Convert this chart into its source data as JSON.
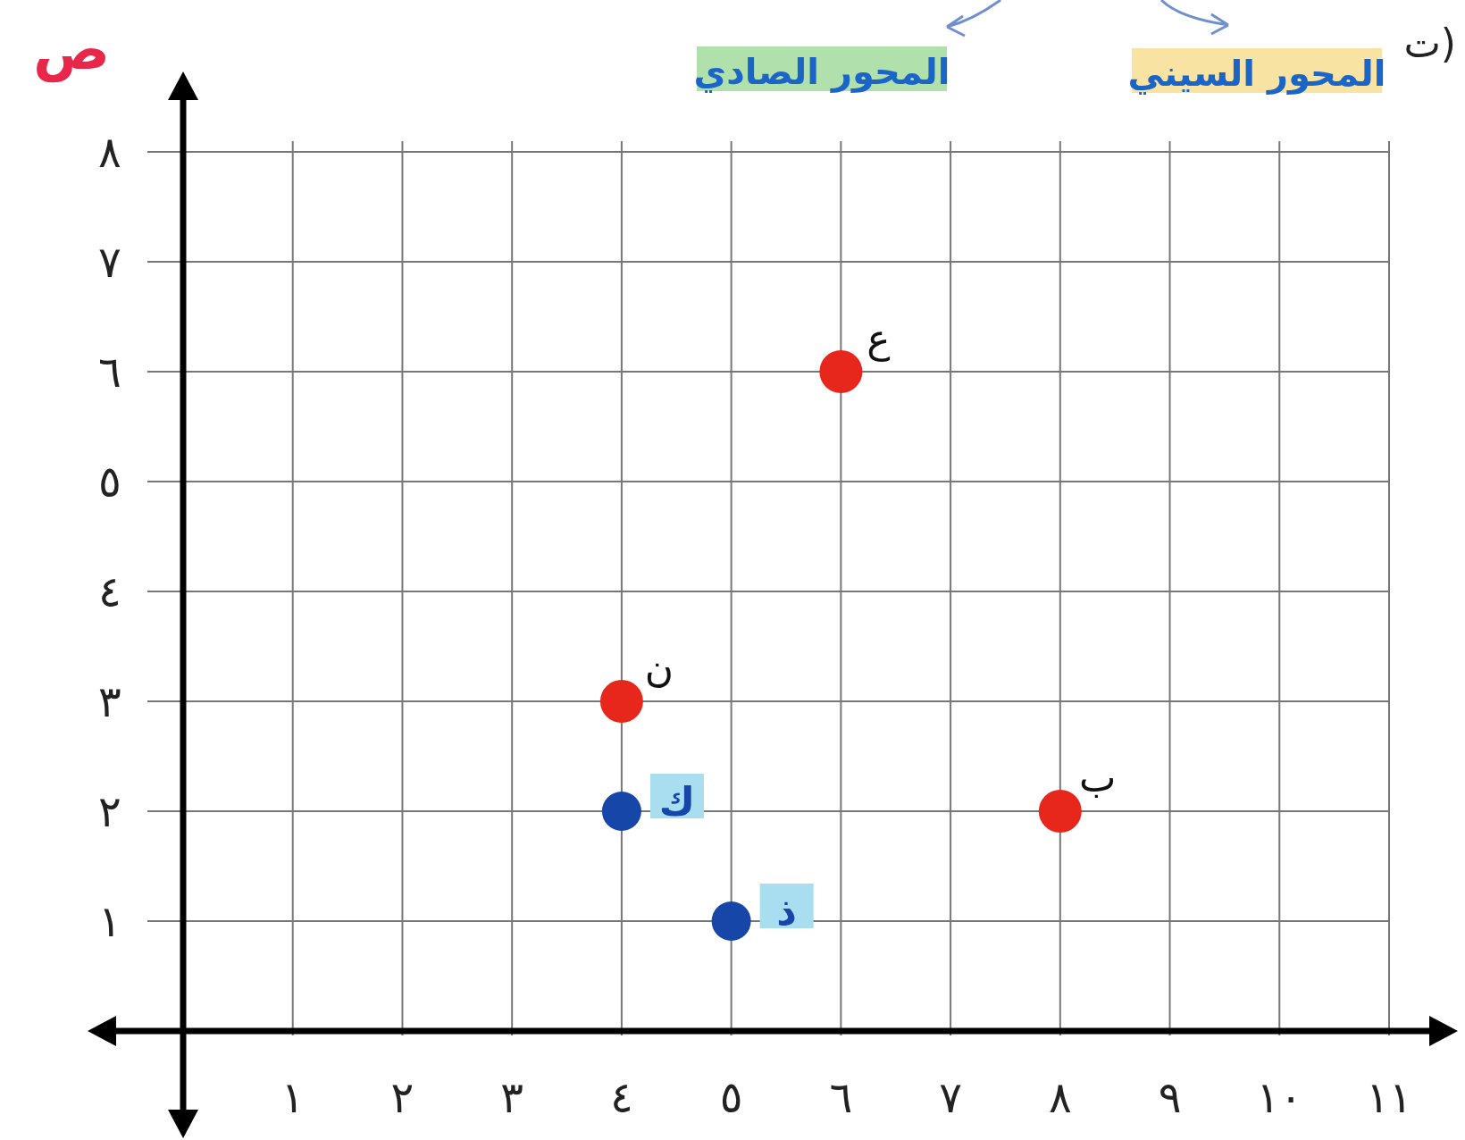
{
  "chart_data": {
    "type": "scatter",
    "title": "ت)",
    "ylabel": "ص",
    "annotations": [
      "المحور الصادي",
      "المحور السيني",
      {
        "text": "ع",
        "x": 6,
        "y": 6
      },
      {
        "text": "ن",
        "x": 4,
        "y": 3
      },
      {
        "text": "ب",
        "x": 8,
        "y": 2
      },
      {
        "text": "ك",
        "x": 4,
        "y": 2
      },
      {
        "text": "ذ",
        "x": 5,
        "y": 1
      }
    ],
    "series": [
      {
        "color": "#e8271c",
        "x": [
          6,
          4,
          8
        ],
        "values": [
          6,
          3,
          2
        ]
      },
      {
        "color": "#1546a8",
        "x": [
          4,
          5
        ],
        "values": [
          2,
          1
        ]
      }
    ],
    "xlim": [
      0,
      11
    ],
    "ylim": [
      0,
      8
    ],
    "xticks": [
      {
        "value": 1,
        "label": "١"
      },
      {
        "value": 2,
        "label": "٢"
      },
      {
        "value": 3,
        "label": "٣"
      },
      {
        "value": 4,
        "label": "٤"
      },
      {
        "value": 5,
        "label": "٥"
      },
      {
        "value": 6,
        "label": "٦"
      },
      {
        "value": 7,
        "label": "٧"
      },
      {
        "value": 8,
        "label": "٨"
      },
      {
        "value": 9,
        "label": "٩"
      },
      {
        "value": 10,
        "label": "١٠"
      },
      {
        "value": 11,
        "label": "١١"
      }
    ],
    "yticks": [
      {
        "value": 1,
        "label": "١"
      },
      {
        "value": 2,
        "label": "٢"
      },
      {
        "value": 3,
        "label": "٣"
      },
      {
        "value": 4,
        "label": "٤"
      },
      {
        "value": 5,
        "label": "٥"
      },
      {
        "value": 6,
        "label": "٦"
      },
      {
        "value": 7,
        "label": "٧"
      },
      {
        "value": 8,
        "label": "٨"
      }
    ],
    "grid": true,
    "marker": "circle"
  }
}
